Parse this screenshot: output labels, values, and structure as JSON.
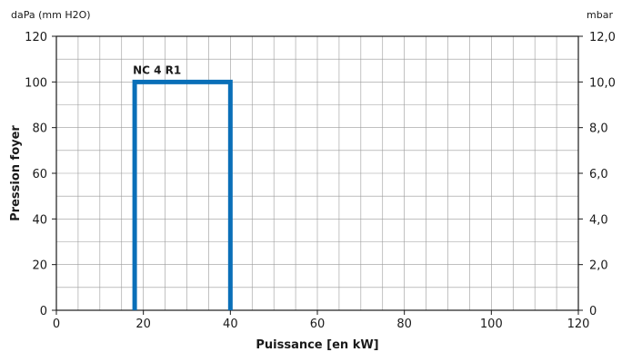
{
  "chart_data": {
    "type": "line",
    "xlabel": "Puissance [en kW]",
    "ylabel": "Pression foyer",
    "y_unit_left": "daPa (mm H2O)",
    "y_unit_right": "mbar",
    "xlim": [
      0,
      120
    ],
    "ylim": [
      0,
      120
    ],
    "x_ticks": [
      "0",
      "20",
      "40",
      "60",
      "80",
      "100",
      "120"
    ],
    "y_ticks_left": [
      "0",
      "20",
      "40",
      "60",
      "80",
      "100",
      "120"
    ],
    "y_ticks_right": [
      "0",
      "2,0",
      "4,0",
      "6,0",
      "8,0",
      "10,0",
      "12,0"
    ],
    "x_grid_step": 5,
    "y_grid_step": 10,
    "grid": true,
    "series": [
      {
        "name": "NC 4 R1",
        "color": "#0a6fb8",
        "x": [
          18,
          18,
          40,
          40
        ],
        "y": [
          0,
          100,
          100,
          0
        ]
      }
    ]
  }
}
